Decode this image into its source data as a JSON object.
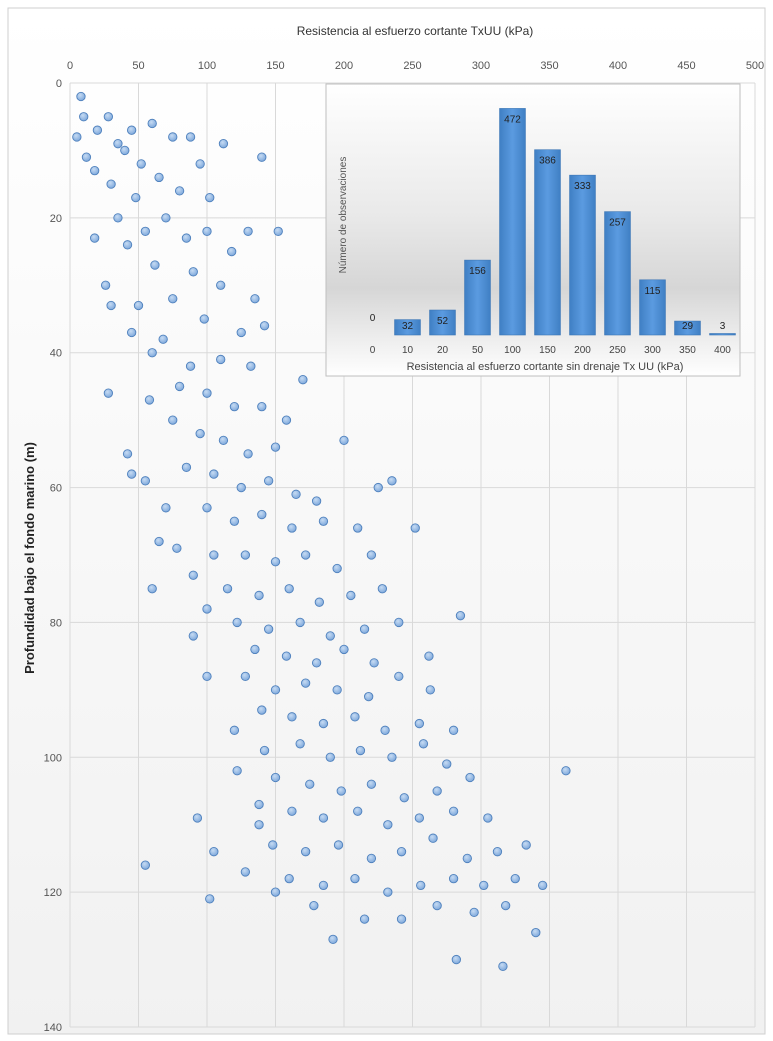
{
  "chart_data": [
    {
      "type": "scatter",
      "title": "Resistencia  al esfuerzo  cortante  TxUU  (kPa)",
      "xlabel": "Resistencia  al esfuerzo  cortante  TxUU  (kPa)",
      "ylabel": "Profundidad bajo el fondo marino (m)",
      "xlim": [
        0,
        500
      ],
      "ylim": [
        0,
        140
      ],
      "y_inverted": true,
      "x_axis_position": "top",
      "x_ticks": [
        "0",
        "50",
        "100",
        "150",
        "200",
        "250",
        "300",
        "350",
        "400",
        "450",
        "500"
      ],
      "y_ticks": [
        "0",
        "20",
        "40",
        "60",
        "80",
        "100",
        "120",
        "140"
      ],
      "grid": true,
      "marker_color": "#8db4e2",
      "marker_edge": "#4f81bd",
      "points": [
        {
          "x": 8,
          "y": 2
        },
        {
          "x": 10,
          "y": 5
        },
        {
          "x": 5,
          "y": 8
        },
        {
          "x": 12,
          "y": 11
        },
        {
          "x": 20,
          "y": 7
        },
        {
          "x": 28,
          "y": 5
        },
        {
          "x": 35,
          "y": 9
        },
        {
          "x": 18,
          "y": 13
        },
        {
          "x": 45,
          "y": 7
        },
        {
          "x": 40,
          "y": 10
        },
        {
          "x": 30,
          "y": 15
        },
        {
          "x": 52,
          "y": 12
        },
        {
          "x": 48,
          "y": 17
        },
        {
          "x": 60,
          "y": 6
        },
        {
          "x": 75,
          "y": 8
        },
        {
          "x": 88,
          "y": 8
        },
        {
          "x": 65,
          "y": 14
        },
        {
          "x": 80,
          "y": 16
        },
        {
          "x": 95,
          "y": 12
        },
        {
          "x": 112,
          "y": 9
        },
        {
          "x": 140,
          "y": 11
        },
        {
          "x": 102,
          "y": 17
        },
        {
          "x": 70,
          "y": 20
        },
        {
          "x": 55,
          "y": 22
        },
        {
          "x": 42,
          "y": 24
        },
        {
          "x": 85,
          "y": 23
        },
        {
          "x": 100,
          "y": 22
        },
        {
          "x": 118,
          "y": 25
        },
        {
          "x": 130,
          "y": 22
        },
        {
          "x": 152,
          "y": 22
        },
        {
          "x": 18,
          "y": 23
        },
        {
          "x": 35,
          "y": 20
        },
        {
          "x": 62,
          "y": 27
        },
        {
          "x": 90,
          "y": 28
        },
        {
          "x": 110,
          "y": 30
        },
        {
          "x": 135,
          "y": 32
        },
        {
          "x": 75,
          "y": 32
        },
        {
          "x": 50,
          "y": 33
        },
        {
          "x": 30,
          "y": 33
        },
        {
          "x": 26,
          "y": 30
        },
        {
          "x": 98,
          "y": 35
        },
        {
          "x": 125,
          "y": 37
        },
        {
          "x": 142,
          "y": 36
        },
        {
          "x": 68,
          "y": 38
        },
        {
          "x": 45,
          "y": 37
        },
        {
          "x": 60,
          "y": 40
        },
        {
          "x": 88,
          "y": 42
        },
        {
          "x": 110,
          "y": 41
        },
        {
          "x": 132,
          "y": 42
        },
        {
          "x": 170,
          "y": 44
        },
        {
          "x": 28,
          "y": 46
        },
        {
          "x": 58,
          "y": 47
        },
        {
          "x": 80,
          "y": 45
        },
        {
          "x": 100,
          "y": 46
        },
        {
          "x": 120,
          "y": 48
        },
        {
          "x": 140,
          "y": 48
        },
        {
          "x": 158,
          "y": 50
        },
        {
          "x": 75,
          "y": 50
        },
        {
          "x": 95,
          "y": 52
        },
        {
          "x": 112,
          "y": 53
        },
        {
          "x": 130,
          "y": 55
        },
        {
          "x": 150,
          "y": 54
        },
        {
          "x": 200,
          "y": 53
        },
        {
          "x": 42,
          "y": 55
        },
        {
          "x": 45,
          "y": 58
        },
        {
          "x": 55,
          "y": 59
        },
        {
          "x": 85,
          "y": 57
        },
        {
          "x": 105,
          "y": 58
        },
        {
          "x": 125,
          "y": 60
        },
        {
          "x": 145,
          "y": 59
        },
        {
          "x": 165,
          "y": 61
        },
        {
          "x": 180,
          "y": 62
        },
        {
          "x": 225,
          "y": 60
        },
        {
          "x": 235,
          "y": 59
        },
        {
          "x": 70,
          "y": 63
        },
        {
          "x": 100,
          "y": 63
        },
        {
          "x": 120,
          "y": 65
        },
        {
          "x": 140,
          "y": 64
        },
        {
          "x": 162,
          "y": 66
        },
        {
          "x": 185,
          "y": 65
        },
        {
          "x": 210,
          "y": 66
        },
        {
          "x": 252,
          "y": 66
        },
        {
          "x": 65,
          "y": 68
        },
        {
          "x": 78,
          "y": 69
        },
        {
          "x": 105,
          "y": 70
        },
        {
          "x": 128,
          "y": 70
        },
        {
          "x": 150,
          "y": 71
        },
        {
          "x": 172,
          "y": 70
        },
        {
          "x": 195,
          "y": 72
        },
        {
          "x": 220,
          "y": 70
        },
        {
          "x": 60,
          "y": 75
        },
        {
          "x": 90,
          "y": 73
        },
        {
          "x": 115,
          "y": 75
        },
        {
          "x": 138,
          "y": 76
        },
        {
          "x": 160,
          "y": 75
        },
        {
          "x": 182,
          "y": 77
        },
        {
          "x": 205,
          "y": 76
        },
        {
          "x": 228,
          "y": 75
        },
        {
          "x": 100,
          "y": 78
        },
        {
          "x": 122,
          "y": 80
        },
        {
          "x": 145,
          "y": 81
        },
        {
          "x": 168,
          "y": 80
        },
        {
          "x": 190,
          "y": 82
        },
        {
          "x": 215,
          "y": 81
        },
        {
          "x": 240,
          "y": 80
        },
        {
          "x": 285,
          "y": 79
        },
        {
          "x": 90,
          "y": 82
        },
        {
          "x": 135,
          "y": 84
        },
        {
          "x": 158,
          "y": 85
        },
        {
          "x": 180,
          "y": 86
        },
        {
          "x": 200,
          "y": 84
        },
        {
          "x": 222,
          "y": 86
        },
        {
          "x": 262,
          "y": 85
        },
        {
          "x": 100,
          "y": 88
        },
        {
          "x": 128,
          "y": 88
        },
        {
          "x": 150,
          "y": 90
        },
        {
          "x": 172,
          "y": 89
        },
        {
          "x": 195,
          "y": 90
        },
        {
          "x": 218,
          "y": 91
        },
        {
          "x": 240,
          "y": 88
        },
        {
          "x": 263,
          "y": 90
        },
        {
          "x": 140,
          "y": 93
        },
        {
          "x": 162,
          "y": 94
        },
        {
          "x": 185,
          "y": 95
        },
        {
          "x": 208,
          "y": 94
        },
        {
          "x": 230,
          "y": 96
        },
        {
          "x": 255,
          "y": 95
        },
        {
          "x": 280,
          "y": 96
        },
        {
          "x": 120,
          "y": 96
        },
        {
          "x": 142,
          "y": 99
        },
        {
          "x": 168,
          "y": 98
        },
        {
          "x": 190,
          "y": 100
        },
        {
          "x": 212,
          "y": 99
        },
        {
          "x": 235,
          "y": 100
        },
        {
          "x": 258,
          "y": 98
        },
        {
          "x": 275,
          "y": 101
        },
        {
          "x": 122,
          "y": 102
        },
        {
          "x": 150,
          "y": 103
        },
        {
          "x": 175,
          "y": 104
        },
        {
          "x": 198,
          "y": 105
        },
        {
          "x": 220,
          "y": 104
        },
        {
          "x": 244,
          "y": 106
        },
        {
          "x": 268,
          "y": 105
        },
        {
          "x": 292,
          "y": 103
        },
        {
          "x": 362,
          "y": 102
        },
        {
          "x": 138,
          "y": 107
        },
        {
          "x": 162,
          "y": 108
        },
        {
          "x": 185,
          "y": 109
        },
        {
          "x": 210,
          "y": 108
        },
        {
          "x": 232,
          "y": 110
        },
        {
          "x": 255,
          "y": 109
        },
        {
          "x": 280,
          "y": 108
        },
        {
          "x": 305,
          "y": 109
        },
        {
          "x": 93,
          "y": 109
        },
        {
          "x": 138,
          "y": 110
        },
        {
          "x": 148,
          "y": 113
        },
        {
          "x": 172,
          "y": 114
        },
        {
          "x": 196,
          "y": 113
        },
        {
          "x": 220,
          "y": 115
        },
        {
          "x": 242,
          "y": 114
        },
        {
          "x": 265,
          "y": 112
        },
        {
          "x": 290,
          "y": 115
        },
        {
          "x": 312,
          "y": 114
        },
        {
          "x": 333,
          "y": 113
        },
        {
          "x": 105,
          "y": 114
        },
        {
          "x": 55,
          "y": 116
        },
        {
          "x": 128,
          "y": 117
        },
        {
          "x": 160,
          "y": 118
        },
        {
          "x": 185,
          "y": 119
        },
        {
          "x": 208,
          "y": 118
        },
        {
          "x": 232,
          "y": 120
        },
        {
          "x": 256,
          "y": 119
        },
        {
          "x": 280,
          "y": 118
        },
        {
          "x": 302,
          "y": 119
        },
        {
          "x": 325,
          "y": 118
        },
        {
          "x": 345,
          "y": 119
        },
        {
          "x": 102,
          "y": 121
        },
        {
          "x": 150,
          "y": 120
        },
        {
          "x": 178,
          "y": 122
        },
        {
          "x": 215,
          "y": 124
        },
        {
          "x": 242,
          "y": 124
        },
        {
          "x": 268,
          "y": 122
        },
        {
          "x": 295,
          "y": 123
        },
        {
          "x": 318,
          "y": 122
        },
        {
          "x": 192,
          "y": 127
        },
        {
          "x": 340,
          "y": 126
        },
        {
          "x": 282,
          "y": 130
        },
        {
          "x": 316,
          "y": 131
        }
      ]
    },
    {
      "type": "bar",
      "ylabel": "Número de observaciones",
      "xlabel": "Resistencia al esfuerzo cortante sin drenaje Tx UU (kPa)",
      "categories": [
        "0",
        "10",
        "20",
        "50",
        "100",
        "150",
        "200",
        "250",
        "300",
        "350",
        "400"
      ],
      "values": [
        0,
        32,
        52,
        156,
        472,
        386,
        333,
        257,
        115,
        29,
        3
      ],
      "ylim": [
        0,
        500
      ],
      "bar_color": "#4a90d9"
    }
  ]
}
